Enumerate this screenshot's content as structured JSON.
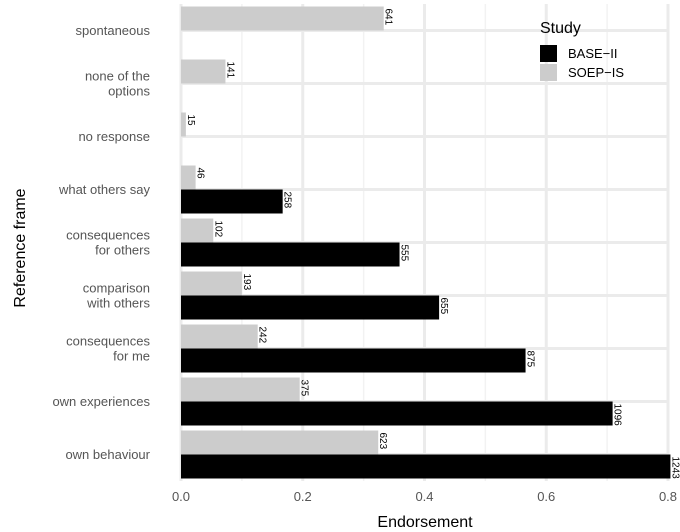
{
  "chart_data": {
    "type": "bar",
    "orientation": "horizontal",
    "xlabel": "Endorsement",
    "ylabel": "Reference frame",
    "xlim": [
      0,
      0.8
    ],
    "xticks": [
      "0.0",
      "0.2",
      "0.4",
      "0.6",
      "0.8"
    ],
    "grid": true,
    "legend_position": "top-right",
    "legend": {
      "title": "Study",
      "entries": [
        {
          "name": "BASE−II",
          "color": "#000000"
        },
        {
          "name": "SOEP−IS",
          "color": "#cccccc"
        }
      ]
    },
    "categories": [
      [
        "spontaneous"
      ],
      [
        "none of the",
        "options"
      ],
      [
        "no response"
      ],
      [
        "what others say"
      ],
      [
        "consequences",
        "for others"
      ],
      [
        "comparison",
        "with others"
      ],
      [
        "consequences",
        "for me"
      ],
      [
        "own experiences"
      ],
      [
        "own behaviour"
      ]
    ],
    "series": [
      {
        "name": "SOEP−IS",
        "color": "#cccccc",
        "values": [
          0.333,
          0.073,
          0.008,
          0.024,
          0.053,
          0.1,
          0.126,
          0.195,
          0.324
        ],
        "labels": [
          "641",
          "141",
          "15",
          "46",
          "102",
          "193",
          "242",
          "375",
          "623"
        ]
      },
      {
        "name": "BASE−II",
        "color": "#000000",
        "values": [
          null,
          null,
          null,
          0.167,
          0.359,
          0.424,
          0.566,
          0.709,
          0.804
        ],
        "labels": [
          null,
          null,
          null,
          "258",
          "555",
          "655",
          "875",
          "1096",
          "1243"
        ]
      }
    ]
  }
}
